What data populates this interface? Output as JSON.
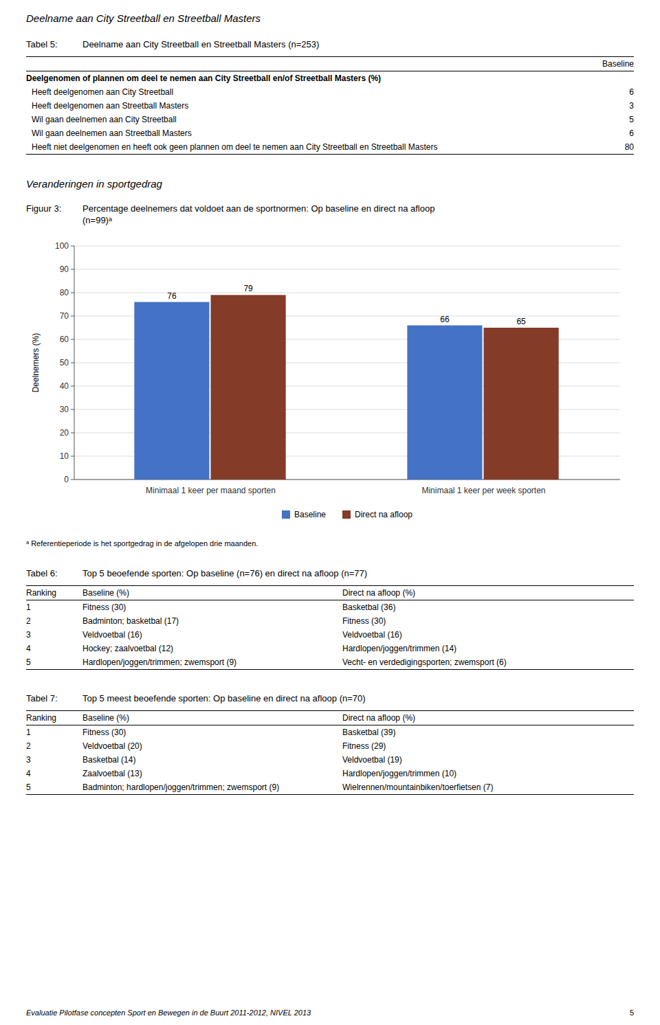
{
  "page_title": "Deelname aan City Streetball en Streetball Masters",
  "table_5": {
    "label": "Tabel 5:",
    "title": "Deelname aan City Streetball en Streetball Masters (n=253)",
    "column_header": "Baseline",
    "header": "Deelgenomen of plannen om deel te nemen aan City Streetball en/of Streetball Masters (%)",
    "rows": [
      [
        "Heeft deelgenomen aan City Streetball",
        "6"
      ],
      [
        "Heeft deelgenomen aan Streetball Masters",
        "3"
      ],
      [
        "Wil gaan deelnemen aan City Streetball",
        "5"
      ],
      [
        "Wil gaan deelnemen aan Streetball Masters",
        "6"
      ],
      [
        "Heeft niet deelgenomen en heeft ook geen plannen om deel te nemen aan City Streetball en Streetball Masters",
        "80"
      ]
    ]
  },
  "section_heading": "Veranderingen in sportgedrag",
  "figure_label": "Figuur 3:",
  "chart_data": {
    "type": "bar",
    "title": "Percentage deelnemers dat voldoet aan de sportnormen: Op baseline en direct na afloop",
    "subtitle": "(n=99)ᵃ",
    "categories": [
      "Minimaal 1 keer per maand sporten",
      "Minimaal 1 keer per week sporten"
    ],
    "series": [
      {
        "name": "Baseline",
        "color": "#4472C4",
        "values": [
          76,
          66
        ]
      },
      {
        "name": "Direct na afloop",
        "color": "#843C28",
        "values": [
          79,
          65
        ]
      }
    ],
    "ylabel": "Deelnemers (%)",
    "ylim": [
      0,
      100
    ],
    "yticks": [
      0,
      10,
      20,
      30,
      40,
      50,
      60,
      70,
      80,
      90,
      100
    ],
    "grid": true,
    "legend": "bottom",
    "data_labels": true
  },
  "footnote": "ᵃ Referentieperiode is het sportgedrag in de afgelopen drie maanden.",
  "tables": [
    {
      "label": "Tabel 6:",
      "title": "Top 5 beoefende sporten: Op baseline (n=76) en direct na afloop (n=77)",
      "columns": [
        "Ranking",
        "Baseline (%)",
        "Direct na afloop (%)"
      ],
      "rows": [
        [
          "1",
          "Fitness (30)",
          "Basketbal (36)"
        ],
        [
          "2",
          "Badminton; basketbal (17)",
          "Fitness (30)"
        ],
        [
          "3",
          "Veldvoetbal (16)",
          "Veldvoetbal (16)"
        ],
        [
          "4",
          "Hockey; zaalvoetbal (12)",
          "Hardlopen/joggen/trimmen (14)"
        ],
        [
          "5",
          "Hardlopen/joggen/trimmen; zwemsport (9)",
          "Vecht- en verdedigingsporten; zwemsport (6)"
        ]
      ]
    },
    {
      "label": "Tabel 7:",
      "title": "Top 5 meest beoefende sporten: Op baseline en direct na afloop (n=70)",
      "columns": [
        "Ranking",
        "Baseline (%)",
        "Direct na afloop (%)"
      ],
      "rows": [
        [
          "1",
          "Fitness (30)",
          "Basketbal (39)"
        ],
        [
          "2",
          "Veldvoetbal (20)",
          "Fitness (29)"
        ],
        [
          "3",
          "Basketbal (14)",
          "Veldvoetbal (19)"
        ],
        [
          "4",
          "Zaalvoetbal (13)",
          "Hardlopen/joggen/trimmen (10)"
        ],
        [
          "5",
          "Badminton; hardlopen/joggen/trimmen; zwemsport (9)",
          "Wielrennen/mountainbiken/toerfietsen (7)"
        ]
      ]
    }
  ],
  "footer": {
    "text": "Evaluatie Pilotfase concepten Sport en Bewegen in de Buurt 2011-2012, NIVEL 2013",
    "page": "5"
  }
}
